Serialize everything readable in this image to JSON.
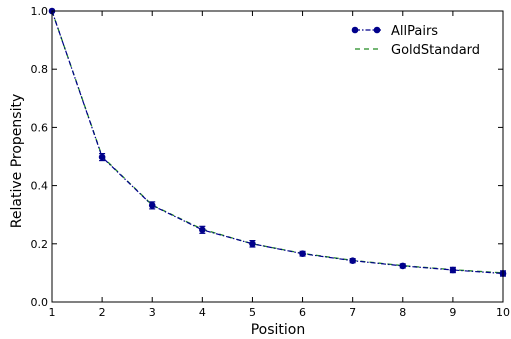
{
  "chart_data": {
    "type": "line",
    "xlabel": "Position",
    "ylabel": "Relative Propensity",
    "xlim": [
      1,
      10
    ],
    "ylim": [
      0,
      1
    ],
    "xticks": [
      "1",
      "2",
      "3",
      "4",
      "5",
      "6",
      "7",
      "8",
      "9",
      "10"
    ],
    "yticks": [
      "0.0",
      "0.2",
      "0.4",
      "0.6",
      "0.8",
      "1.0"
    ],
    "x": [
      1,
      2,
      3,
      4,
      5,
      6,
      7,
      8,
      9,
      10
    ],
    "series": [
      {
        "name": "AllPairs",
        "style": "dash-dot with circle markers and error bars",
        "color": "#00008b",
        "values": [
          1.0,
          0.498,
          0.332,
          0.248,
          0.2,
          0.166,
          0.142,
          0.124,
          0.11,
          0.098
        ],
        "errors": [
          0.0,
          0.012,
          0.012,
          0.012,
          0.011,
          0.008,
          0.007,
          0.007,
          0.009,
          0.009
        ]
      },
      {
        "name": "GoldStandard",
        "style": "dashed",
        "color": "#228b22",
        "values": [
          1.0,
          0.5,
          0.333,
          0.25,
          0.2,
          0.167,
          0.143,
          0.125,
          0.111,
          0.1
        ]
      }
    ],
    "legend_position": "top-right",
    "grid": false
  }
}
